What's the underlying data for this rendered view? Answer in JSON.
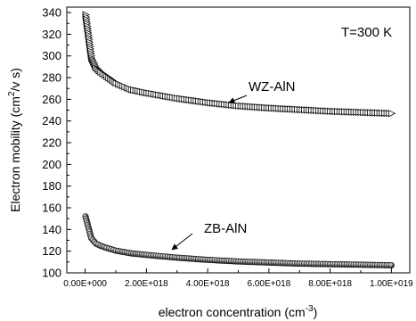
{
  "chart_data": {
    "type": "scatter",
    "annotation": "T=300 K",
    "xlabel": {
      "main": "electron concentration (cm",
      "sup": "-3",
      "end": ")"
    },
    "ylabel": {
      "main": "Electron mobility (cm",
      "sup": "2",
      "end": "/v s)"
    },
    "xlim": [
      -6e+17,
      1.06e+19
    ],
    "ylim": [
      100,
      345
    ],
    "x_ticks": [
      0,
      2e+18,
      4e+18,
      6e+18,
      8e+18,
      1e+19
    ],
    "x_tick_labels": [
      "0.00E+000",
      "2.00E+018",
      "4.00E+018",
      "6.00E+018",
      "8.00E+018",
      "1.00E+019"
    ],
    "y_ticks": [
      100,
      120,
      140,
      160,
      180,
      200,
      220,
      240,
      260,
      280,
      300,
      320,
      340
    ],
    "y_tick_labels": [
      "100",
      "120",
      "140",
      "160",
      "180",
      "200",
      "220",
      "240",
      "260",
      "280",
      "300",
      "320",
      "340"
    ],
    "series": [
      {
        "name": "WZ-AlN",
        "marker": "triangle-right",
        "x": [
          1e+16,
          2e+17,
          3.5e+17,
          5e+17,
          7e+17,
          1e+18,
          1.5e+18,
          2e+18,
          3e+18,
          4e+18,
          5e+18,
          6e+18,
          7e+18,
          8e+18,
          9e+18,
          1e+19
        ],
        "y": [
          338,
          298,
          289,
          285,
          281,
          275,
          269,
          266,
          261,
          257,
          254,
          252,
          250.5,
          249,
          248,
          247
        ]
      },
      {
        "name": "ZB-AlN",
        "marker": "sphere",
        "x": [
          1e+16,
          2e+17,
          3.5e+17,
          5e+17,
          7e+17,
          1e+18,
          1.5e+18,
          2e+18,
          3e+18,
          4e+18,
          5e+18,
          6e+18,
          7e+18,
          8e+18,
          9e+18,
          1e+19
        ],
        "y": [
          152,
          132,
          127,
          125,
          123,
          120.5,
          118,
          116.5,
          114,
          112,
          110.5,
          109.5,
          108.5,
          108,
          107.5,
          107
        ]
      }
    ],
    "labels": [
      {
        "text": "WZ-AlN",
        "series": "WZ-AlN"
      },
      {
        "text": "ZB-AlN",
        "series": "ZB-AlN"
      }
    ]
  }
}
